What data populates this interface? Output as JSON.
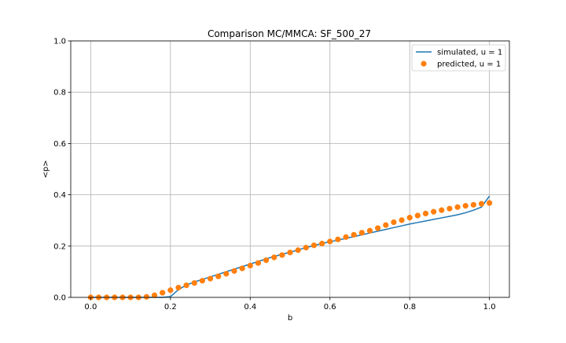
{
  "chart_data": {
    "type": "line",
    "title": "Comparison MC/MMCA: SF_500_27",
    "xlabel": "b",
    "ylabel": "<p>",
    "xlim": [
      -0.05,
      1.05
    ],
    "ylim": [
      0.0,
      1.0
    ],
    "xticks": [
      0.0,
      0.2,
      0.4,
      0.6,
      0.8,
      1.0
    ],
    "xtick_labels": [
      "0.0",
      "0.2",
      "0.4",
      "0.6",
      "0.8",
      "1.0"
    ],
    "yticks": [
      0.0,
      0.2,
      0.4,
      0.6,
      0.8,
      1.0
    ],
    "ytick_labels": [
      "0.0",
      "0.2",
      "0.4",
      "0.6",
      "0.8",
      "1.0"
    ],
    "grid": true,
    "legend_position": "top-right",
    "colors": {
      "simulated": "#1f77b4",
      "predicted": "#ff7f0e"
    },
    "series": [
      {
        "name": "simulated, u = 1",
        "style": "line",
        "x": [
          0.0,
          0.02,
          0.04,
          0.06,
          0.08,
          0.1,
          0.12,
          0.14,
          0.16,
          0.18,
          0.2,
          0.22,
          0.24,
          0.26,
          0.28,
          0.3,
          0.32,
          0.34,
          0.36,
          0.38,
          0.4,
          0.42,
          0.44,
          0.46,
          0.48,
          0.5,
          0.52,
          0.54,
          0.56,
          0.58,
          0.6,
          0.62,
          0.64,
          0.66,
          0.68,
          0.7,
          0.72,
          0.74,
          0.76,
          0.78,
          0.8,
          0.82,
          0.84,
          0.86,
          0.88,
          0.9,
          0.92,
          0.94,
          0.96,
          0.98,
          1.0
        ],
        "y": [
          0.0,
          0.0,
          0.0,
          0.0,
          0.0,
          0.0,
          0.0,
          0.0,
          0.0,
          0.0,
          0.003,
          0.03,
          0.048,
          0.06,
          0.07,
          0.08,
          0.09,
          0.1,
          0.11,
          0.12,
          0.13,
          0.14,
          0.15,
          0.16,
          0.168,
          0.176,
          0.185,
          0.194,
          0.202,
          0.21,
          0.217,
          0.223,
          0.23,
          0.237,
          0.244,
          0.251,
          0.258,
          0.265,
          0.272,
          0.279,
          0.286,
          0.292,
          0.298,
          0.304,
          0.31,
          0.316,
          0.322,
          0.33,
          0.34,
          0.352,
          0.395
        ]
      },
      {
        "name": "predicted, u = 1",
        "style": "scatter",
        "x": [
          0.0,
          0.02,
          0.04,
          0.06,
          0.08,
          0.1,
          0.12,
          0.14,
          0.16,
          0.18,
          0.2,
          0.22,
          0.24,
          0.26,
          0.28,
          0.3,
          0.32,
          0.34,
          0.36,
          0.38,
          0.4,
          0.42,
          0.44,
          0.46,
          0.48,
          0.5,
          0.52,
          0.54,
          0.56,
          0.58,
          0.6,
          0.62,
          0.64,
          0.66,
          0.68,
          0.7,
          0.72,
          0.74,
          0.76,
          0.78,
          0.8,
          0.82,
          0.84,
          0.86,
          0.88,
          0.9,
          0.92,
          0.94,
          0.96,
          0.98,
          1.0
        ],
        "y": [
          0.0,
          0.0,
          0.0,
          0.0,
          0.0,
          0.0,
          0.0,
          0.002,
          0.008,
          0.018,
          0.028,
          0.038,
          0.047,
          0.056,
          0.065,
          0.073,
          0.082,
          0.092,
          0.103,
          0.113,
          0.124,
          0.134,
          0.145,
          0.156,
          0.165,
          0.175,
          0.184,
          0.194,
          0.203,
          0.21,
          0.218,
          0.226,
          0.235,
          0.244,
          0.252,
          0.26,
          0.27,
          0.282,
          0.293,
          0.301,
          0.311,
          0.319,
          0.327,
          0.334,
          0.34,
          0.346,
          0.352,
          0.357,
          0.361,
          0.365,
          0.368
        ]
      }
    ]
  }
}
